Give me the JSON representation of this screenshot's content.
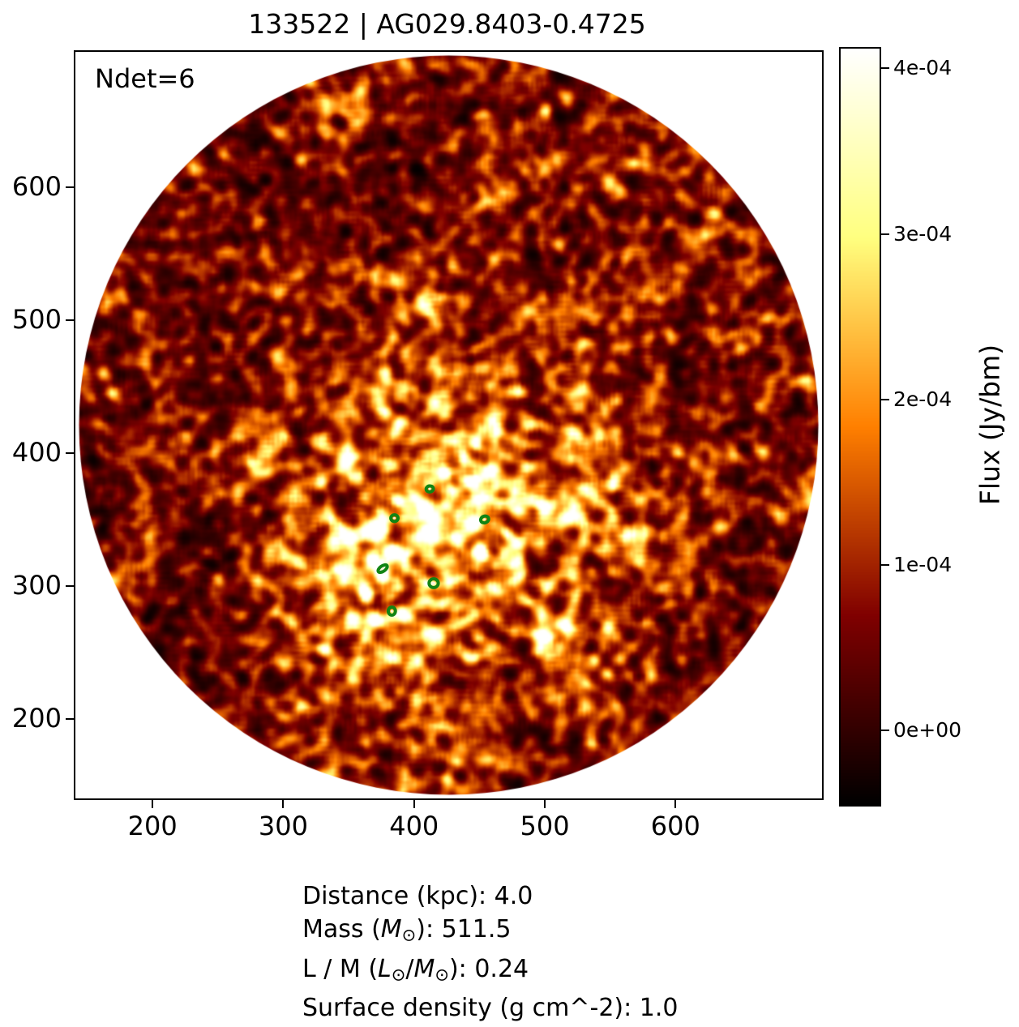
{
  "figure": {
    "title": "133522 | AG029.8403-0.4725"
  },
  "chart_data": {
    "type": "heatmap",
    "title": "133522 | AG029.8403-0.4725",
    "annotation": "Ndet=6",
    "n_detections": 6,
    "xlabel": "",
    "ylabel": "",
    "xlim": [
      141,
      712
    ],
    "ylim": [
      140,
      702
    ],
    "x_ticks": [
      200,
      300,
      400,
      500,
      600
    ],
    "x_tick_labels": [
      "200",
      "300",
      "400",
      "500",
      "600"
    ],
    "y_ticks": [
      200,
      300,
      400,
      500,
      600
    ],
    "y_tick_labels": [
      "200",
      "300",
      "400",
      "500",
      "600"
    ],
    "grid": false,
    "colormap": "afmhot",
    "image_mask": "circle",
    "noise_seed": 133522,
    "colorbar": {
      "label": "Flux (Jy/bm)",
      "position": "right",
      "vmin": -4.5e-05,
      "vmax": 0.000412,
      "ticks": [
        0,
        0.0001,
        0.0002,
        0.0003,
        0.0004
      ],
      "tick_labels": [
        "0e+00",
        "1e-04",
        "2e-04",
        "3e-04",
        "4e-04"
      ]
    },
    "marker_color": "#128414",
    "marker_center_color": "#fdf3da",
    "detections": [
      {
        "x": 412,
        "y": 373,
        "w": 5.5,
        "h": 4.5,
        "angle": -10
      },
      {
        "x": 385,
        "y": 351,
        "w": 5.5,
        "h": 5.0,
        "angle": 0
      },
      {
        "x": 454,
        "y": 350,
        "w": 6.2,
        "h": 5.0,
        "angle": -20
      },
      {
        "x": 376,
        "y": 313,
        "w": 8.0,
        "h": 4.0,
        "angle": -35
      },
      {
        "x": 415,
        "y": 302,
        "w": 7.0,
        "h": 6.5,
        "angle": 0
      },
      {
        "x": 383,
        "y": 281,
        "w": 5.5,
        "h": 6.0,
        "angle": 0
      }
    ]
  },
  "stats": {
    "lines": [
      {
        "segments": [
          {
            "t": "Distance (kpc): 4.0"
          }
        ]
      },
      {
        "segments": [
          {
            "t": "Mass ("
          },
          {
            "t": "M",
            "style": "italic"
          },
          {
            "t": "⊙",
            "style": "sub"
          },
          {
            "t": "): 511.5"
          }
        ]
      },
      {
        "segments": [
          {
            "t": "L / M ("
          },
          {
            "t": "L",
            "style": "italic"
          },
          {
            "t": "⊙",
            "style": "sub"
          },
          {
            "t": "/"
          },
          {
            "t": "M",
            "style": "italic"
          },
          {
            "t": "⊙",
            "style": "sub"
          },
          {
            "t": "): 0.24"
          }
        ]
      },
      {
        "segments": [
          {
            "t": "Surface density (g cm^-2): 1.0"
          }
        ]
      }
    ]
  }
}
